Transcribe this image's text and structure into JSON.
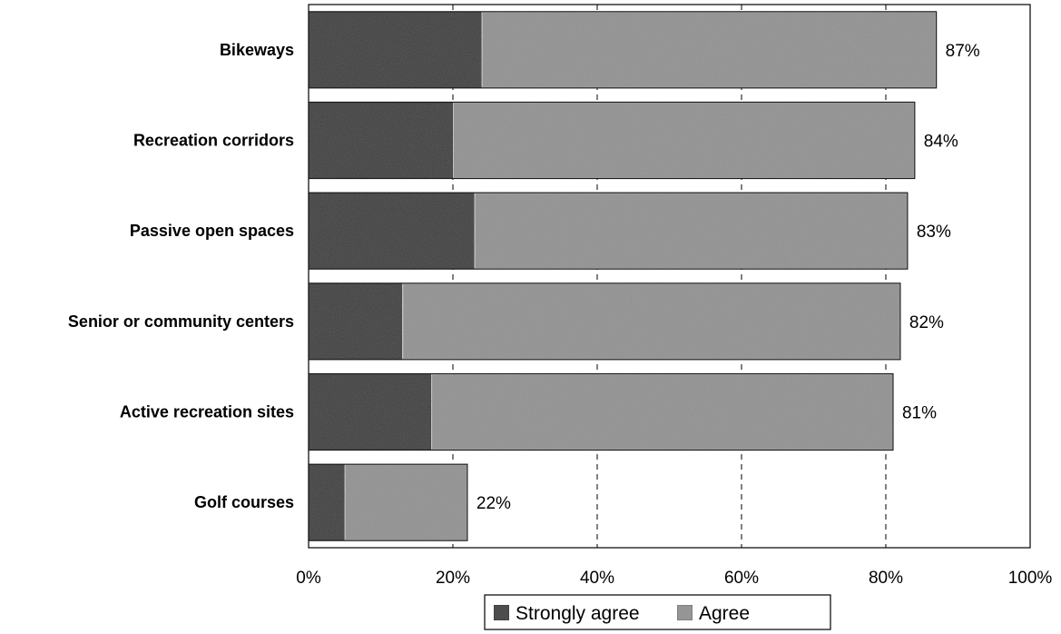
{
  "chart_data": {
    "type": "bar",
    "orientation": "horizontal",
    "stacked": true,
    "categories": [
      "Bikeways",
      "Recreation corridors",
      "Passive open spaces",
      "Senior or community centers",
      "Active recreation sites",
      "Golf courses"
    ],
    "series": [
      {
        "name": "Strongly agree",
        "values": [
          24,
          20,
          23,
          13,
          17,
          5
        ],
        "color": "#3c3c3c"
      },
      {
        "name": "Agree",
        "values": [
          63,
          64,
          60,
          69,
          64,
          17
        ],
        "color": "#8e8e8e"
      }
    ],
    "totals": [
      87,
      84,
      83,
      82,
      81,
      22
    ],
    "data_labels": [
      "87%",
      "84%",
      "83%",
      "82%",
      "81%",
      "22%"
    ],
    "xlim": [
      0,
      100
    ],
    "x_ticks": [
      "0%",
      "20%",
      "40%",
      "60%",
      "80%",
      "100%"
    ],
    "grid": "vertical dashed",
    "legend": {
      "placement": "bottom-center",
      "entries": [
        "Strongly agree",
        "Agree"
      ]
    },
    "title": "",
    "xlabel": "",
    "ylabel": ""
  }
}
